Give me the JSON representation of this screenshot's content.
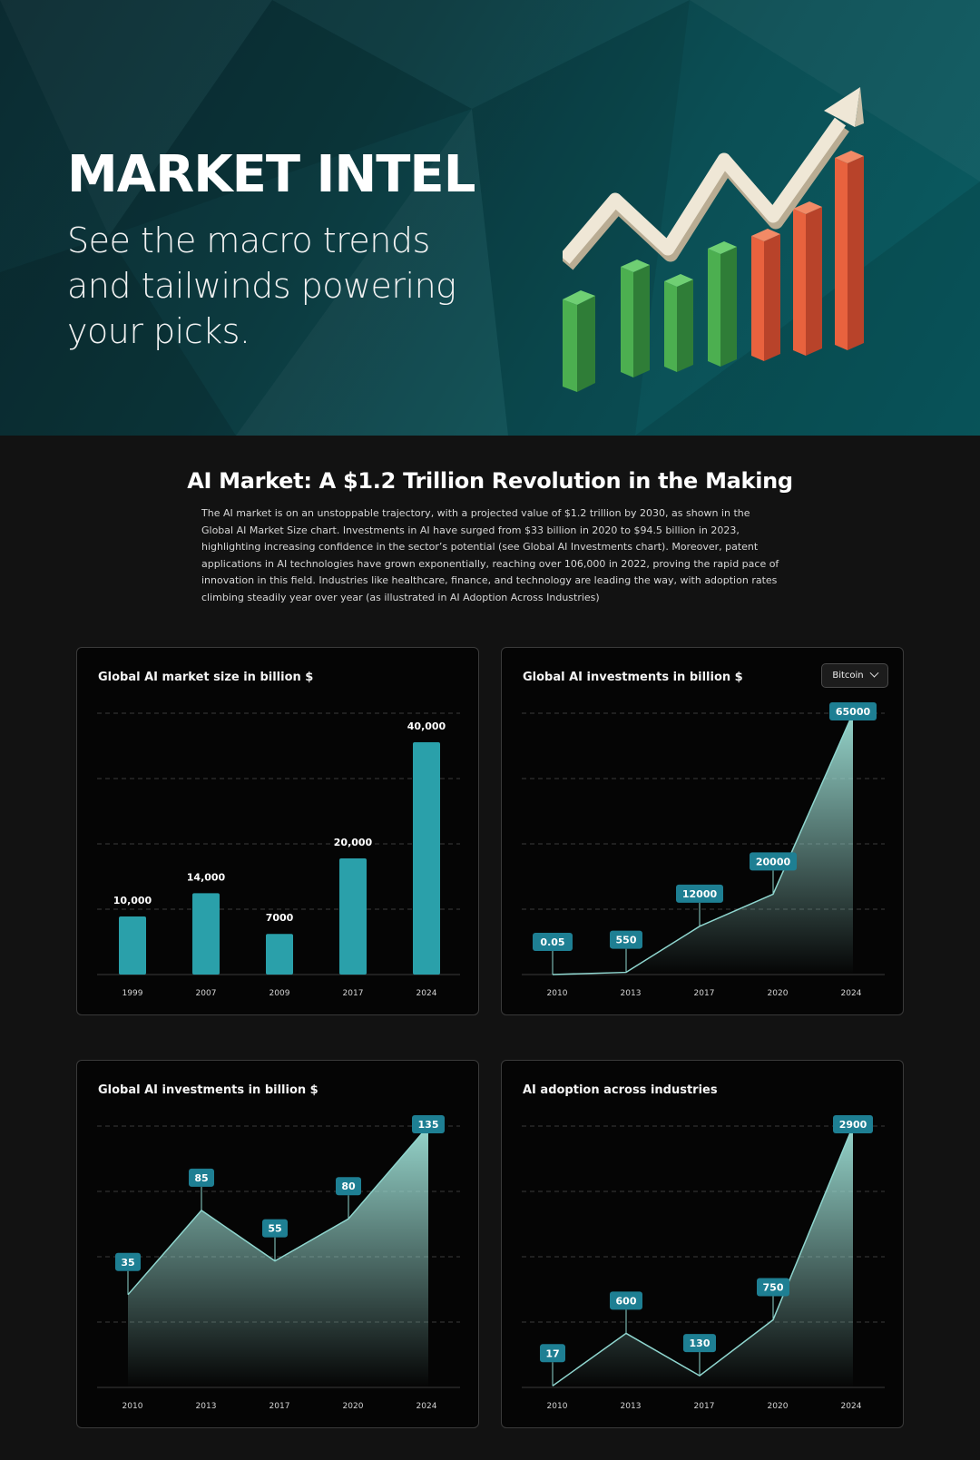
{
  "hero": {
    "title": "MARKET INTEL",
    "subtitle": "See the macro trends and tailwinds powering your picks."
  },
  "intro": {
    "title": "AI Market: A $1.2 Trillion Revolution in the Making",
    "text": "The AI market is on an unstoppable trajectory, with a projected value of $1.2 trillion by 2030, as shown in the Global AI Market Size chart. Investments in AI have surged from $33 billion in 2020 to $94.5 billion in 2023, highlighting increasing confidence in the sector’s potential (see Global AI Investments chart). Moreover, patent applications in AI technologies have grown exponentially, reaching over 106,000 in 2022, proving the rapid pace of innovation in this field. Industries like healthcare, finance, and technology are leading the way, with adoption rates climbing steadily year over year (as illustrated in AI Adoption Across Industries)"
  },
  "colors": {
    "bar": "#2aa0aa",
    "badge": "#1e7f93",
    "line": "#8fd6cf",
    "accent_green": "#4caf50",
    "accent_red": "#e8623e"
  },
  "chart_data": [
    {
      "type": "bar",
      "title": "Global AI market size in billion $",
      "categories": [
        "1999",
        "2007",
        "2009",
        "2017",
        "2024"
      ],
      "values": [
        10000,
        14000,
        7000,
        20000,
        40000
      ],
      "labels": [
        "10,000",
        "14,000",
        "7000",
        "20,000",
        "40,000"
      ],
      "ylim": [
        0,
        45000
      ],
      "grid": true
    },
    {
      "type": "area",
      "title": "Global AI investments in billion $",
      "dropdown": "Bitcoin",
      "categories": [
        "2010",
        "2013",
        "2017",
        "2020",
        "2024"
      ],
      "values": [
        0.05,
        550,
        12000,
        20000,
        65000
      ],
      "labels": [
        "0.05",
        "550",
        "12000",
        "20000",
        "65000"
      ],
      "ylim": [
        0,
        65000
      ],
      "grid": true
    },
    {
      "type": "area",
      "title": "Global AI investments in billion $",
      "categories": [
        "2010",
        "2013",
        "2017",
        "2020",
        "2024"
      ],
      "values": [
        35,
        85,
        55,
        80,
        135
      ],
      "labels": [
        "35",
        "85",
        "55",
        "80",
        "135"
      ],
      "ylim": [
        -20,
        135
      ],
      "grid": true
    },
    {
      "type": "area",
      "title": "AI adoption across industries",
      "categories": [
        "2010",
        "2013",
        "2017",
        "2020",
        "2024"
      ],
      "values": [
        17,
        600,
        130,
        750,
        2900
      ],
      "labels": [
        "17",
        "600",
        "130",
        "750",
        "2900"
      ],
      "ylim": [
        0,
        2900
      ],
      "grid": true
    }
  ]
}
